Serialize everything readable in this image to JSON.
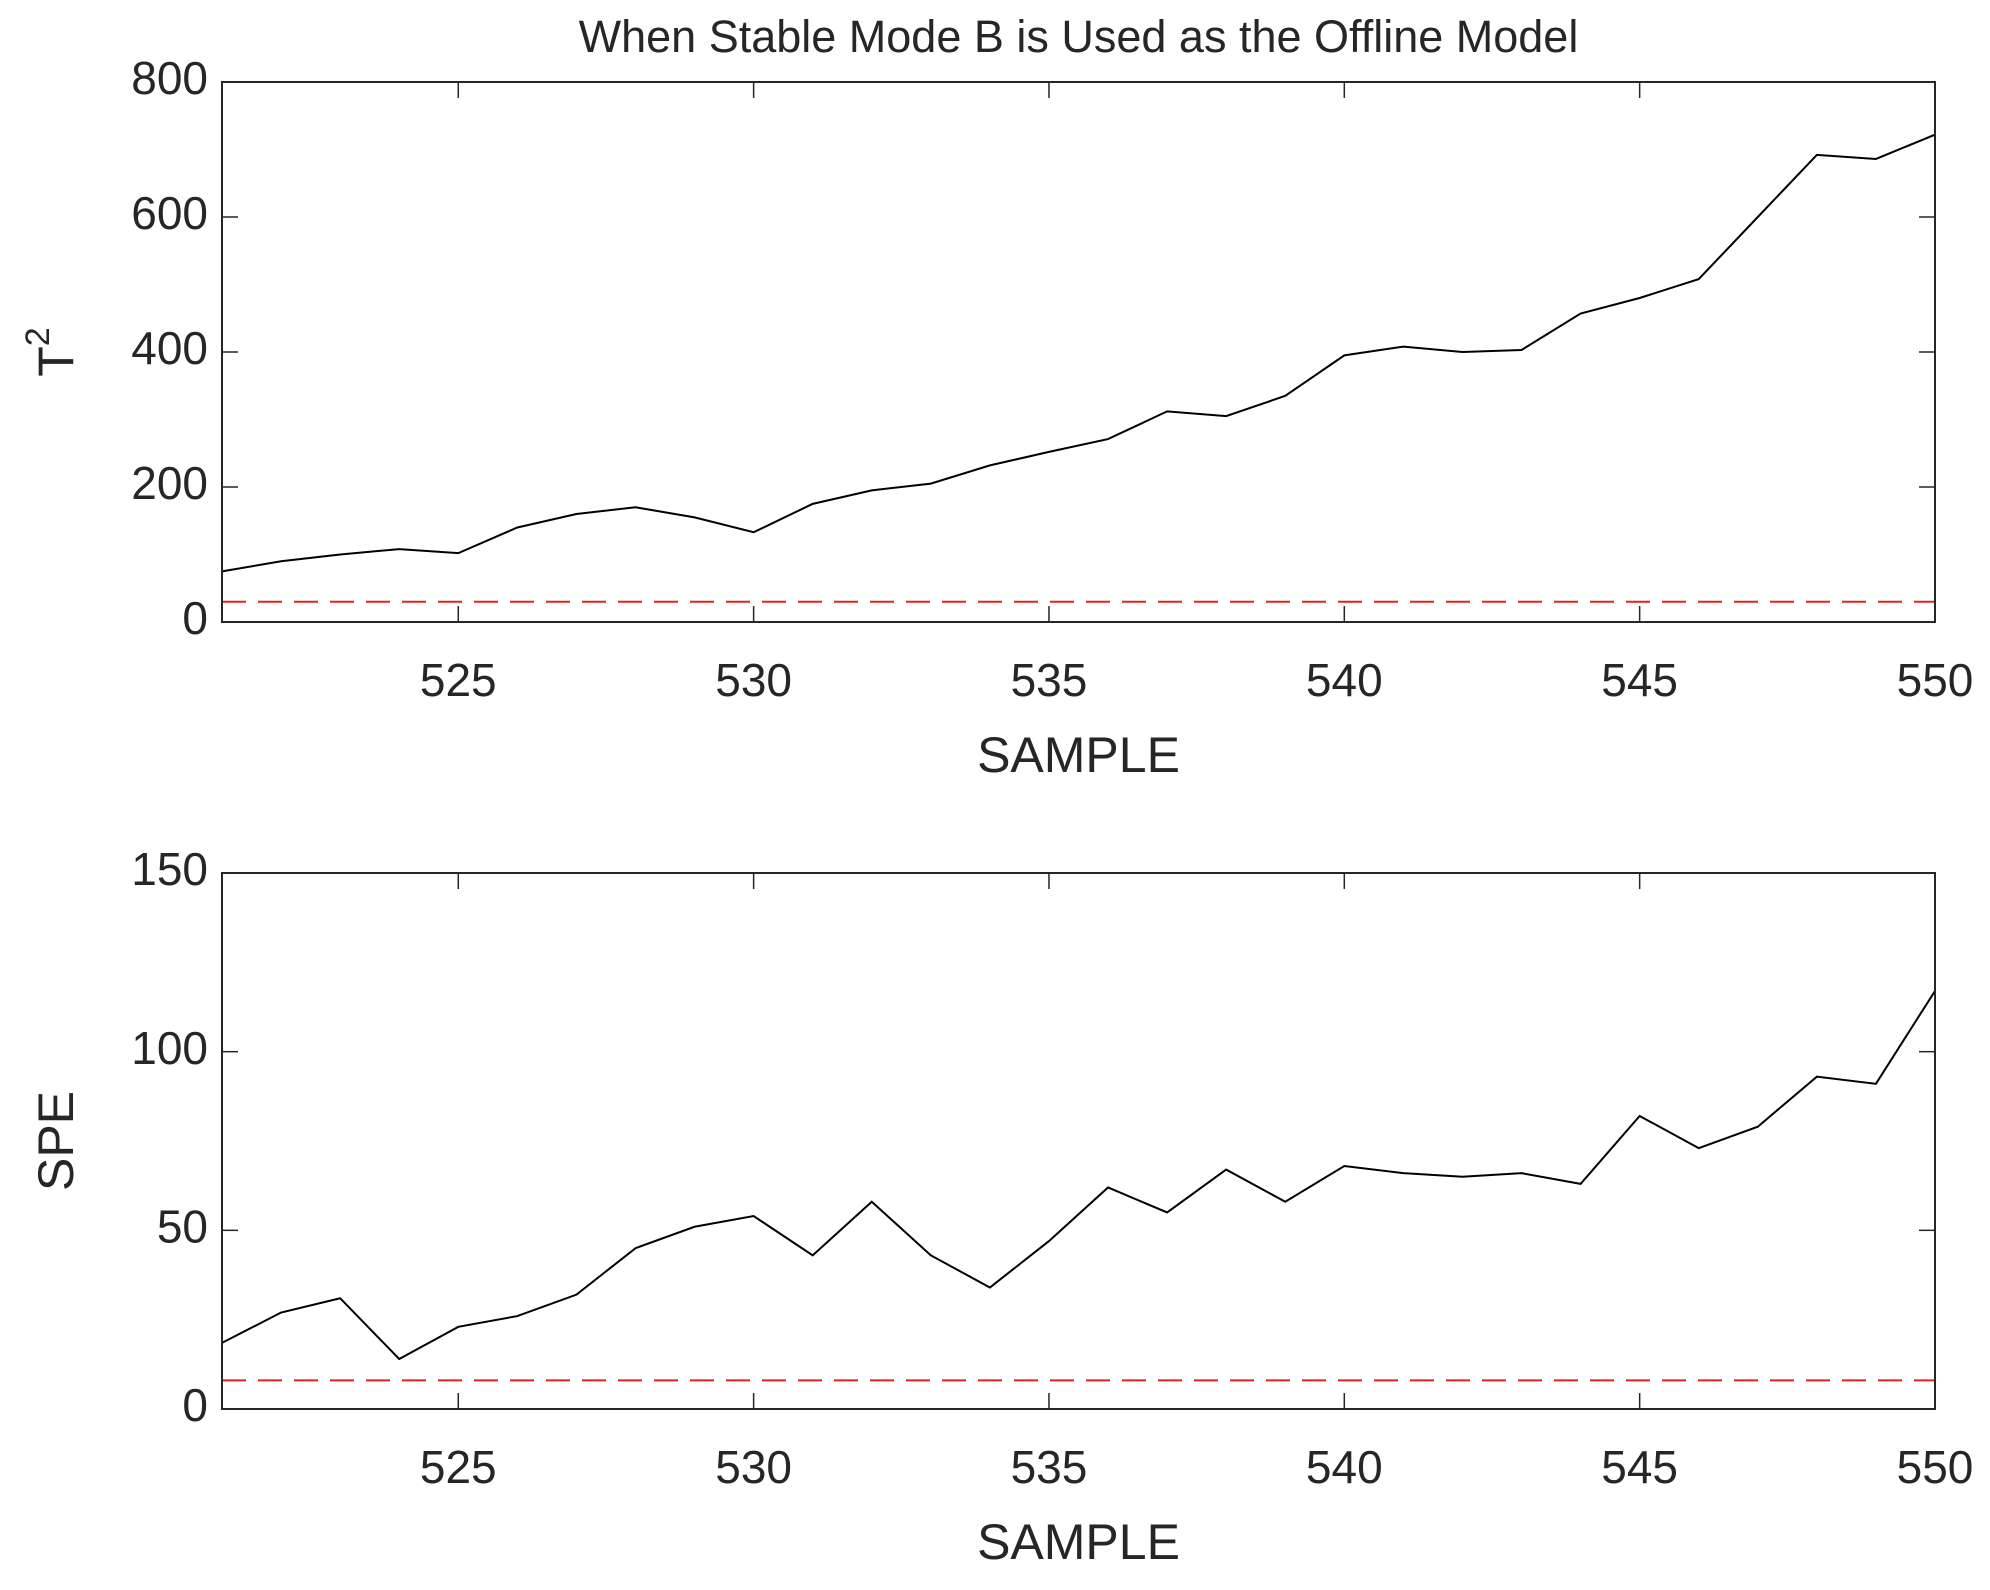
{
  "chart_data": [
    {
      "type": "line",
      "title": "When Stable Mode B is Used as the Offline Model",
      "xlabel": "SAMPLE",
      "ylabel": {
        "base": "T",
        "sup": "2"
      },
      "x": [
        521,
        522,
        523,
        524,
        525,
        526,
        527,
        528,
        529,
        530,
        531,
        532,
        533,
        534,
        535,
        536,
        537,
        538,
        539,
        540,
        541,
        542,
        543,
        544,
        545,
        546,
        547,
        548,
        549,
        550
      ],
      "values": [
        75,
        90,
        100,
        108,
        102,
        140,
        160,
        170,
        155,
        133,
        175,
        195,
        205,
        232,
        252,
        271,
        312,
        305,
        335,
        395,
        408,
        400,
        403,
        457,
        480,
        508,
        600,
        692,
        686,
        722
      ],
      "color": "#000000",
      "threshold": 30,
      "threshold_color": "#e0201e",
      "xlim": [
        521,
        550
      ],
      "xticks": [
        525,
        530,
        535,
        540,
        545,
        550
      ],
      "ylim": [
        0,
        800
      ],
      "yticks": [
        0,
        200,
        400,
        600,
        800
      ]
    },
    {
      "type": "line",
      "xlabel": "SAMPLE",
      "ylabel": "SPE",
      "x": [
        521,
        522,
        523,
        524,
        525,
        526,
        527,
        528,
        529,
        530,
        531,
        532,
        533,
        534,
        535,
        536,
        537,
        538,
        539,
        540,
        541,
        542,
        543,
        544,
        545,
        546,
        547,
        548,
        549,
        550
      ],
      "values": [
        18.5,
        27,
        31,
        14,
        23,
        26,
        32,
        45,
        51,
        54,
        43,
        58,
        43,
        34,
        47,
        62,
        55,
        67,
        58,
        68,
        66,
        65,
        66,
        63,
        82,
        73,
        79,
        93,
        91,
        117
      ],
      "color": "#000000",
      "threshold": 8,
      "threshold_color": "#e0201e",
      "xlim": [
        521,
        550
      ],
      "xticks": [
        525,
        530,
        535,
        540,
        545,
        550
      ],
      "ylim": [
        0,
        150
      ],
      "yticks": [
        0,
        50,
        100,
        150
      ]
    }
  ]
}
